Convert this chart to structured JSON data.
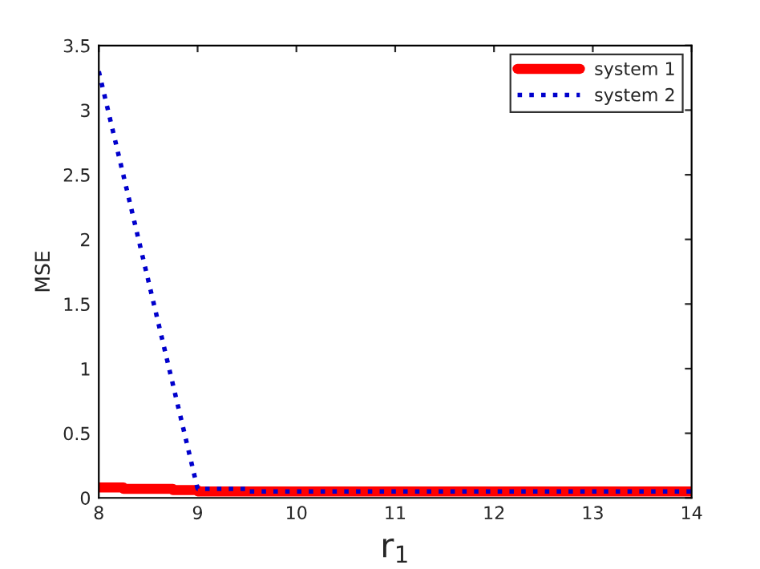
{
  "chart_data": {
    "type": "line",
    "xlabel": "r$_{1}$",
    "ylabel": "MSE",
    "xlim": [
      8,
      14
    ],
    "ylim": [
      0,
      3.5
    ],
    "xticks": [
      8,
      9,
      10,
      11,
      12,
      13,
      14
    ],
    "yticks": [
      0,
      0.5,
      1,
      1.5,
      2,
      2.5,
      3,
      3.5
    ],
    "grid": false,
    "legend": "top right",
    "series": [
      {
        "name": "system 1",
        "color": "#ff0000",
        "line_style": "solid",
        "x": [
          8,
          8.25,
          8.25,
          8.75,
          8.75,
          9,
          9,
          14
        ],
        "values": [
          0.08,
          0.08,
          0.07,
          0.07,
          0.06,
          0.06,
          0.05,
          0.05
        ]
      },
      {
        "name": "system 2",
        "color": "#0000cc",
        "line_style": "dotted",
        "x": [
          8,
          9,
          9.5,
          9.5,
          14
        ],
        "values": [
          3.3,
          0.07,
          0.07,
          0.05,
          0.05
        ]
      }
    ]
  }
}
